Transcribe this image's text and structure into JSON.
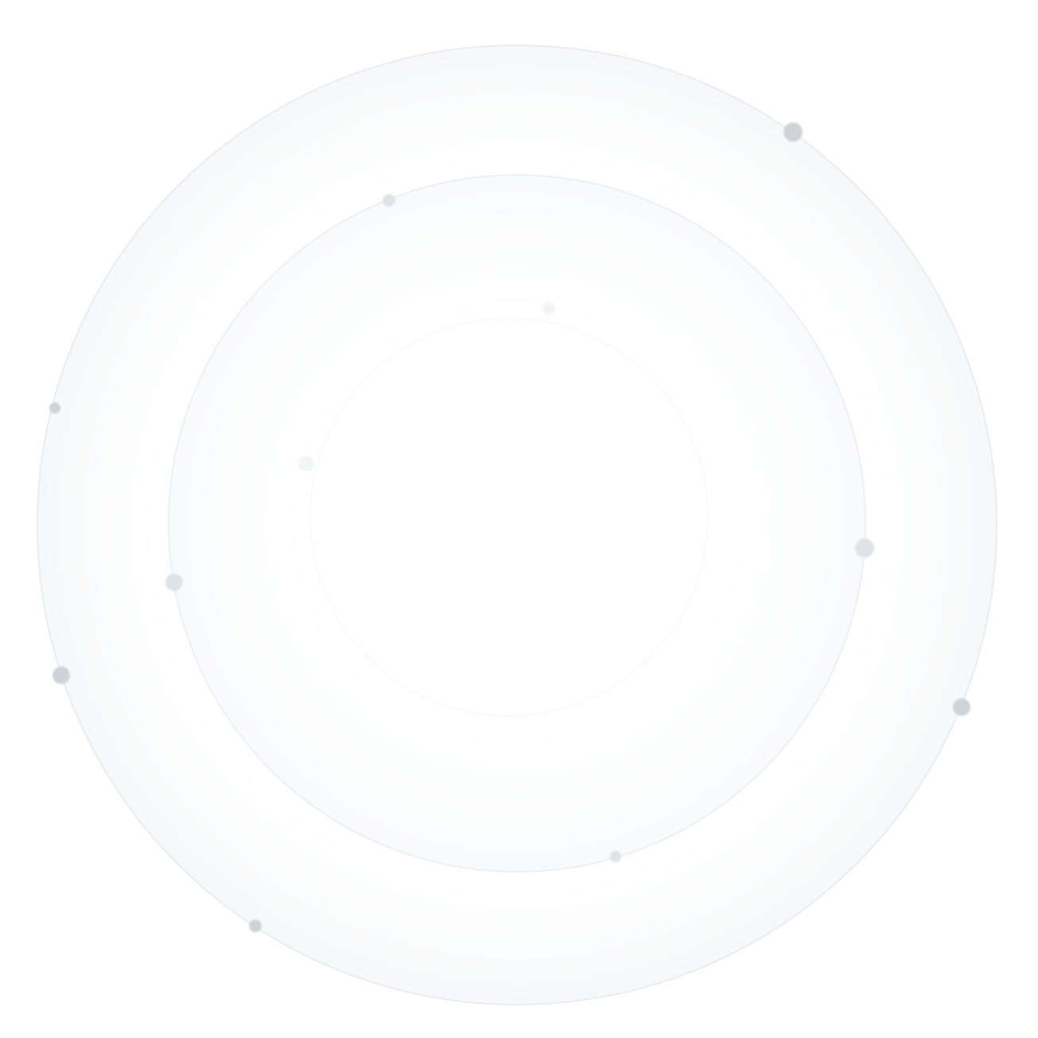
{
  "colors": {
    "background": "#ffffff",
    "ring_stroke": "#ececee",
    "ring_fill_edge": "#f7f8f9",
    "dot_strong": "#cfd3d9",
    "dot_soft": "#dfe2e6",
    "dot_faint": "#f3f4f5"
  },
  "decoration": {
    "rings": [
      "outer-orbit",
      "inner-orbit",
      "innermost-orbit"
    ],
    "dot_count": 12
  }
}
